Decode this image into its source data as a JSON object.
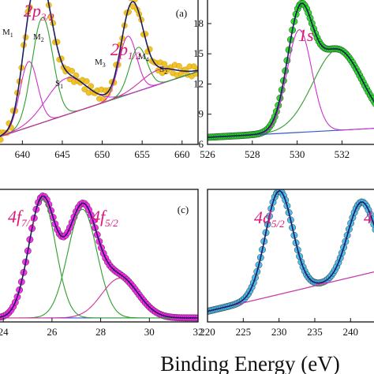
{
  "figure": {
    "xlabel": "Binding Energy (eV)",
    "colors": {
      "fit": "#1c1c5e",
      "peak_a1": "#cc33cc",
      "peak_a2": "#2e9e2e",
      "peak_a3": "#cc3399",
      "peak_b1": "#cc33cc",
      "peak_b2": "#2e9e2e",
      "baseline": "#3355cc",
      "orbital": "#e0157a",
      "pts_a": "#f0c020",
      "pts_b": "#22dd22",
      "pts_c": "#ff22ee",
      "pts_d": "#44bbee"
    }
  },
  "chart_data": [
    {
      "type": "line",
      "panel_label": "(a)",
      "xlim": [
        637,
        662
      ],
      "xticks": [
        "640",
        "645",
        "650",
        "655",
        "660"
      ],
      "yticks": [],
      "orbitals": [
        {
          "main": "2p",
          "sub": "3/2"
        },
        {
          "main": "2p",
          "sub": "1/2"
        }
      ],
      "peak_labels": [
        "M",
        "1",
        "M",
        "2",
        "S",
        "1",
        "M",
        "3",
        "M",
        "4",
        "S",
        "2"
      ],
      "baseline": {
        "x": [
          637,
          662
        ],
        "y": [
          0.05,
          0.5
        ]
      },
      "peaks": [
        {
          "center": 640.8,
          "height": 0.45,
          "width": 1.1
        },
        {
          "center": 642.5,
          "height": 0.72,
          "width": 1.3
        },
        {
          "center": 645.5,
          "height": 0.25,
          "width": 2.5
        },
        {
          "center": 653.2,
          "height": 0.4,
          "width": 1.1
        },
        {
          "center": 654.5,
          "height": 0.3,
          "width": 1.1
        },
        {
          "center": 657.0,
          "height": 0.1,
          "width": 2.2
        }
      ],
      "ylim": [
        0,
        1
      ]
    },
    {
      "type": "line",
      "panel_label": "",
      "xlim": [
        526,
        533.5
      ],
      "ylim": [
        6,
        20.5
      ],
      "xticks": [
        "526",
        "528",
        "530",
        "532"
      ],
      "yticks": [
        "6",
        "9",
        "12",
        "15",
        "18"
      ],
      "orbitals": [
        {
          "main": "1s",
          "sub": ""
        }
      ],
      "baseline": {
        "x": [
          526,
          533.5
        ],
        "y": [
          6.7,
          7.6
        ]
      },
      "peaks": [
        {
          "center": 530.1,
          "height": 10.2,
          "width": 0.55
        },
        {
          "center": 531.8,
          "height": 8.0,
          "width": 1.1
        }
      ]
    },
    {
      "type": "line",
      "panel_label": "(c)",
      "xlim": [
        23.8,
        32
      ],
      "ylim": [
        0,
        1
      ],
      "xticks": [
        "24",
        "26",
        "28",
        "30",
        "32"
      ],
      "yticks": [],
      "orbitals": [
        {
          "main": "4f",
          "sub": "7/2"
        },
        {
          "main": "4f",
          "sub": "5/2"
        }
      ],
      "baseline": {
        "x": [
          23.8,
          32
        ],
        "y": [
          0.03,
          0.03
        ]
      },
      "peaks": [
        {
          "center": 25.6,
          "height": 0.9,
          "width": 0.55
        },
        {
          "center": 27.25,
          "height": 0.82,
          "width": 0.6
        },
        {
          "center": 28.8,
          "height": 0.3,
          "width": 0.75
        }
      ]
    },
    {
      "type": "line",
      "panel_label": "",
      "xlim": [
        220,
        243.5
      ],
      "ylim": [
        0,
        1
      ],
      "xticks": [
        "220",
        "225",
        "230",
        "235",
        "240"
      ],
      "yticks": [],
      "orbitals": [
        {
          "main": "4d",
          "sub": "5/2"
        },
        {
          "main": "4",
          "sub": ""
        }
      ],
      "baseline": {
        "x": [
          220,
          243.5
        ],
        "y": [
          0.08,
          0.38
        ]
      },
      "peaks": [
        {
          "center": 230.0,
          "height": 0.78,
          "width": 1.9
        },
        {
          "center": 241.5,
          "height": 0.55,
          "width": 1.9
        }
      ]
    }
  ]
}
